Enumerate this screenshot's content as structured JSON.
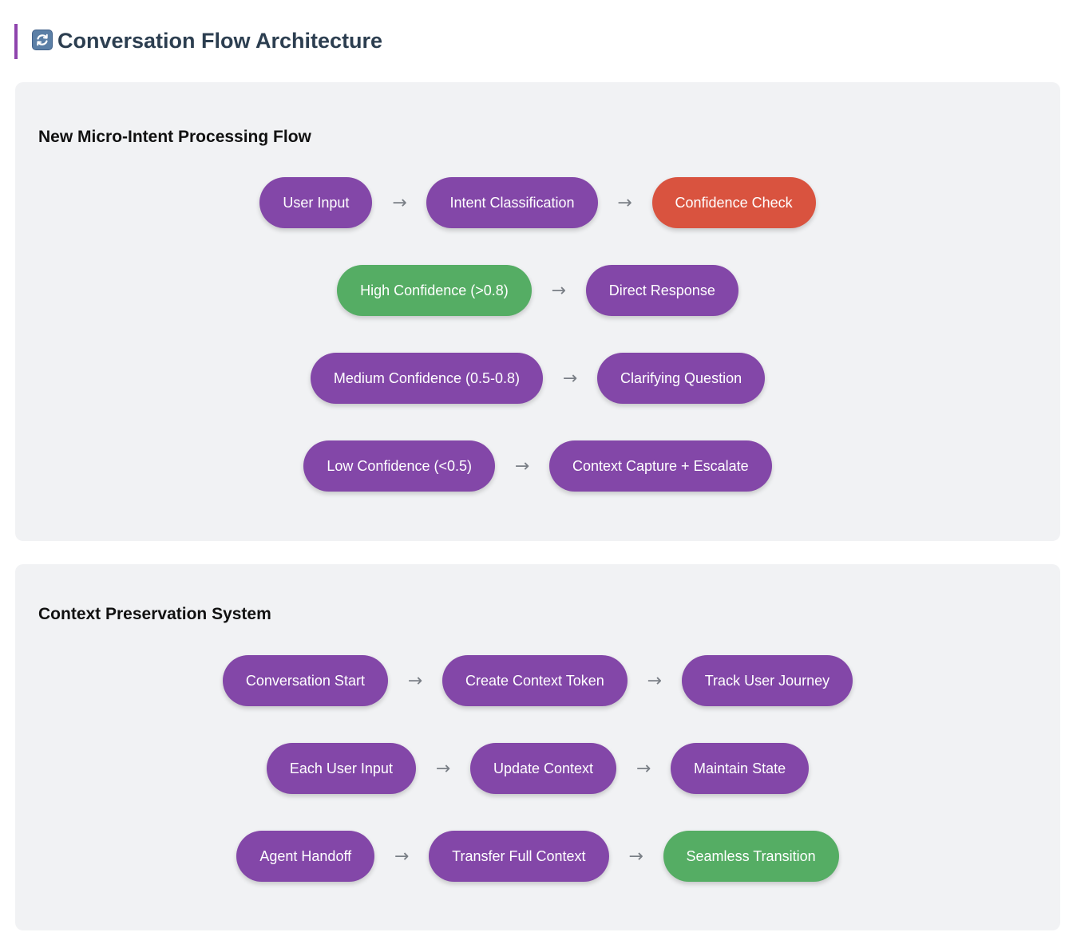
{
  "header": {
    "icon": "refresh-arrows-icon",
    "title": "Conversation Flow Architecture",
    "accent_color": "#8e44ad"
  },
  "colors": {
    "node_default": "#8347a8",
    "node_alert": "#d9533f",
    "node_success": "#55ad64",
    "panel_background": "#f1f2f4"
  },
  "arrow_glyph": "→",
  "micro_intent_flow": {
    "title": "New Micro-Intent Processing Flow",
    "rows": [
      {
        "nodes": [
          {
            "label": "User Input",
            "color": "purple"
          },
          {
            "label": "Intent Classification",
            "color": "purple"
          },
          {
            "label": "Confidence Check",
            "color": "red"
          }
        ]
      },
      {
        "nodes": [
          {
            "label": "High Confidence (>0.8)",
            "color": "green"
          },
          {
            "label": "Direct Response",
            "color": "purple"
          }
        ]
      },
      {
        "nodes": [
          {
            "label": "Medium Confidence (0.5-0.8)",
            "color": "purple"
          },
          {
            "label": "Clarifying Question",
            "color": "purple"
          }
        ]
      },
      {
        "nodes": [
          {
            "label": "Low Confidence (<0.5)",
            "color": "purple"
          },
          {
            "label": "Context Capture + Escalate",
            "color": "purple"
          }
        ]
      }
    ]
  },
  "context_preservation": {
    "title": "Context Preservation System",
    "rows": [
      {
        "nodes": [
          {
            "label": "Conversation Start",
            "color": "purple"
          },
          {
            "label": "Create Context Token",
            "color": "purple"
          },
          {
            "label": "Track User Journey",
            "color": "purple"
          }
        ]
      },
      {
        "nodes": [
          {
            "label": "Each User Input",
            "color": "purple"
          },
          {
            "label": "Update Context",
            "color": "purple"
          },
          {
            "label": "Maintain State",
            "color": "purple"
          }
        ]
      },
      {
        "nodes": [
          {
            "label": "Agent Handoff",
            "color": "purple"
          },
          {
            "label": "Transfer Full Context",
            "color": "purple"
          },
          {
            "label": "Seamless Transition",
            "color": "green"
          }
        ]
      }
    ]
  }
}
